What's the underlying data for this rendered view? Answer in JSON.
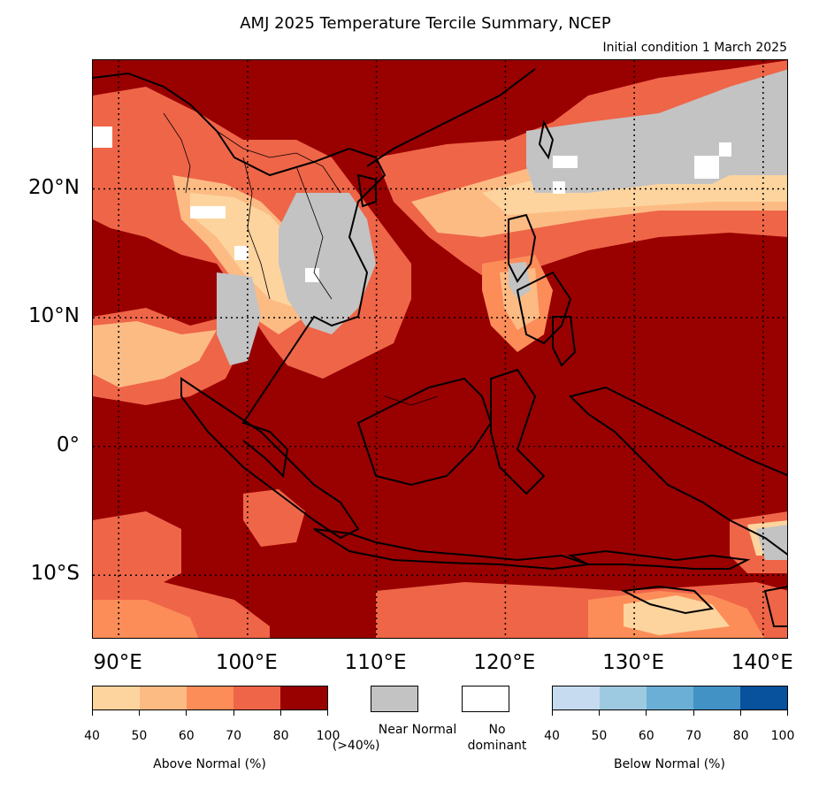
{
  "title": "AMJ 2025 Temperature Tercile Summary, NCEP",
  "subtitle": "Initial condition 1 March 2025",
  "map": {
    "extent": {
      "lon_min": 88,
      "lon_max": 142,
      "lat_min": -15,
      "lat_max": 30
    },
    "lat_labels": [
      "20°N",
      "10°N",
      "0°",
      "10°S"
    ],
    "lon_labels": [
      "90°E",
      "100°E",
      "110°E",
      "120°E",
      "130°E",
      "140°E"
    ],
    "background_color": "#990000",
    "gridlines": "dotted"
  },
  "legend": {
    "above_normal": {
      "label": "Above Normal (%)",
      "ticks": [
        "40",
        "50",
        "60",
        "70",
        "80",
        "100"
      ],
      "colors": [
        "#fdd49e",
        "#fdbb84",
        "#fc8d59",
        "#ef6548",
        "#990000"
      ]
    },
    "near_normal": {
      "label_line1": "Near Normal",
      "label_line2": "(>40%)",
      "color": "#c3c3c3"
    },
    "no_dominant": {
      "label_line1": "No",
      "label_line2": "dominant",
      "color": "#ffffff"
    },
    "below_normal": {
      "label": "Below Normal (%)",
      "ticks": [
        "40",
        "50",
        "60",
        "70",
        "80",
        "100"
      ],
      "colors": [
        "#c6dbef",
        "#9ecae1",
        "#6baed6",
        "#4292c6",
        "#08519c"
      ]
    }
  }
}
